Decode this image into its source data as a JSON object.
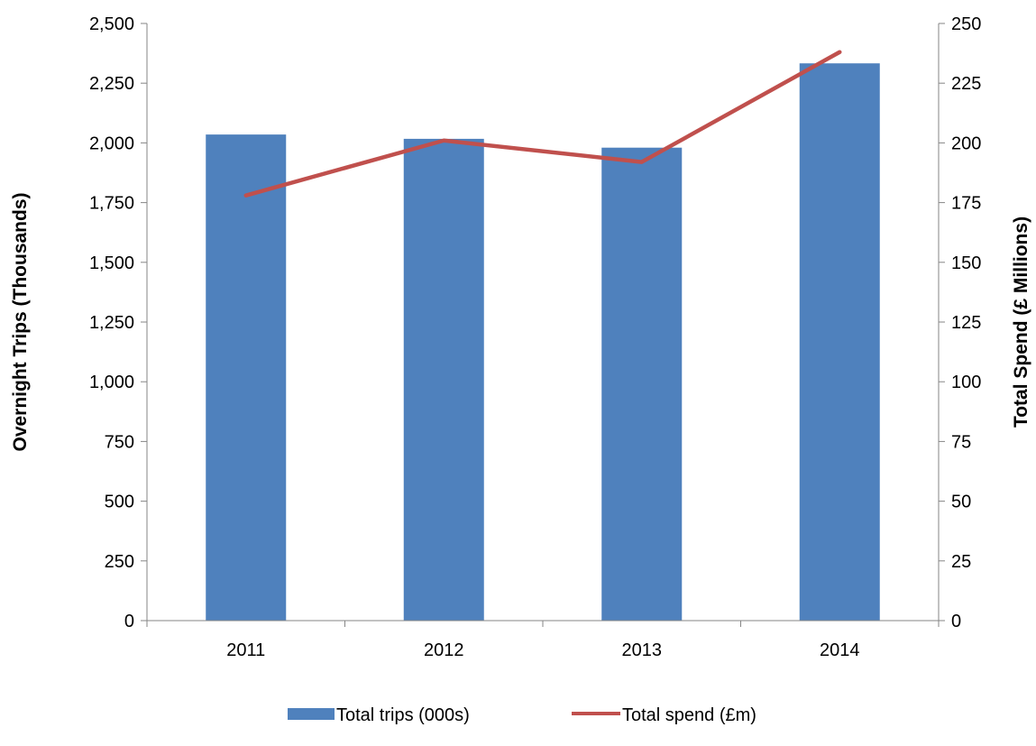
{
  "chart_data": {
    "type": "bar",
    "categories": [
      "2011",
      "2012",
      "2013",
      "2014"
    ],
    "series": [
      {
        "name": "Total trips (000s)",
        "type": "bar",
        "axis": "left",
        "color": "#4F81BD",
        "values": [
          2035,
          2017,
          1980,
          2333
        ]
      },
      {
        "name": "Total spend (£m)",
        "type": "line",
        "axis": "right",
        "color": "#C0504D",
        "values": [
          178,
          201,
          192,
          238
        ]
      }
    ],
    "ylabel": "Overnight Trips (Thousands)",
    "y2label": "Total Spend (£ Millions)",
    "ylim": [
      0,
      2500
    ],
    "y2lim": [
      0,
      250
    ],
    "yticks": [
      "0",
      "250",
      "500",
      "750",
      "1,000",
      "1,250",
      "1,500",
      "1,750",
      "2,000",
      "2,250",
      "2,500"
    ],
    "y2ticks": [
      "0",
      "25",
      "50",
      "75",
      "100",
      "125",
      "150",
      "175",
      "200",
      "225",
      "250"
    ],
    "legend_position": "bottom",
    "grid": false
  }
}
